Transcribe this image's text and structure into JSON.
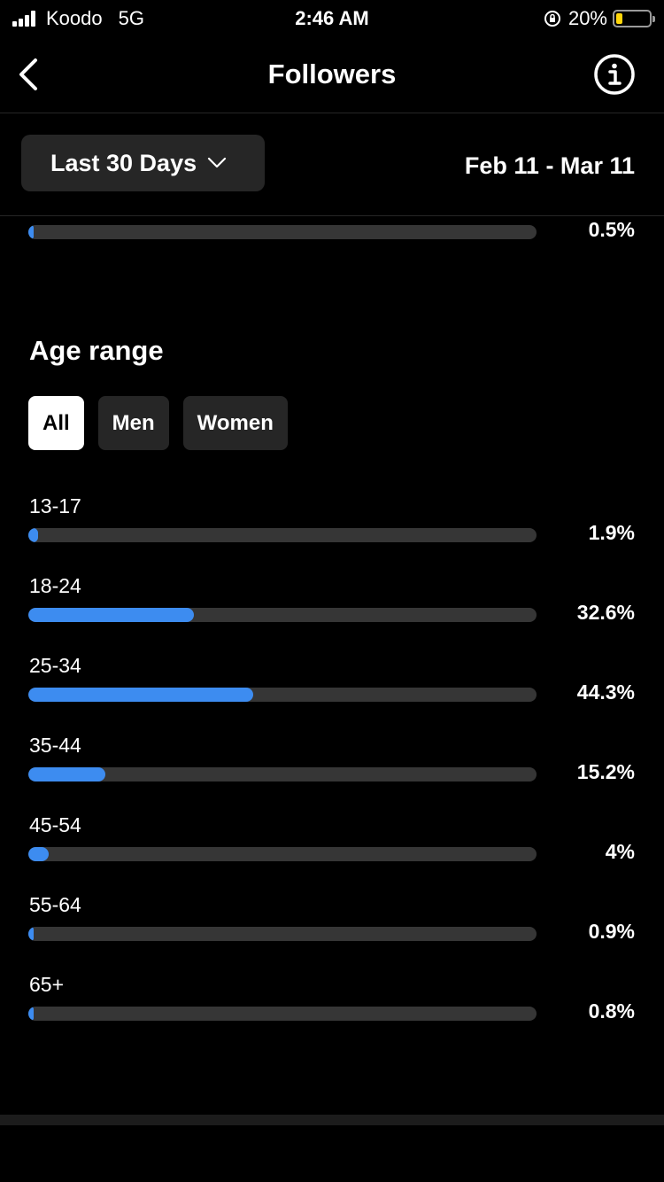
{
  "status": {
    "carrier": "Koodo",
    "network": "5G",
    "time": "2:46 AM",
    "battery": "20%",
    "battery_level": 0.2,
    "battery_color": "#ffd60a"
  },
  "nav": {
    "title": "Followers",
    "back_icon": "chevron-left-icon",
    "info_icon": "info-icon"
  },
  "filter": {
    "period_label": "Last 30 Days",
    "date_range": "Feb 11 - Mar 11"
  },
  "partial_row": {
    "value": "0.5%",
    "fraction": 0.005
  },
  "age_section": {
    "title": "Age range",
    "tabs": [
      {
        "label": "All",
        "active": true
      },
      {
        "label": "Men",
        "active": false
      },
      {
        "label": "Women",
        "active": false
      }
    ],
    "accent_color": "#3d8cf0",
    "rows": [
      {
        "label": "13-17",
        "value": "1.9%",
        "fraction": 0.019
      },
      {
        "label": "18-24",
        "value": "32.6%",
        "fraction": 0.326
      },
      {
        "label": "25-34",
        "value": "44.3%",
        "fraction": 0.443
      },
      {
        "label": "35-44",
        "value": "15.2%",
        "fraction": 0.152
      },
      {
        "label": "45-54",
        "value": "4%",
        "fraction": 0.04
      },
      {
        "label": "55-64",
        "value": "0.9%",
        "fraction": 0.009
      },
      {
        "label": "65+",
        "value": "0.8%",
        "fraction": 0.008
      }
    ]
  }
}
